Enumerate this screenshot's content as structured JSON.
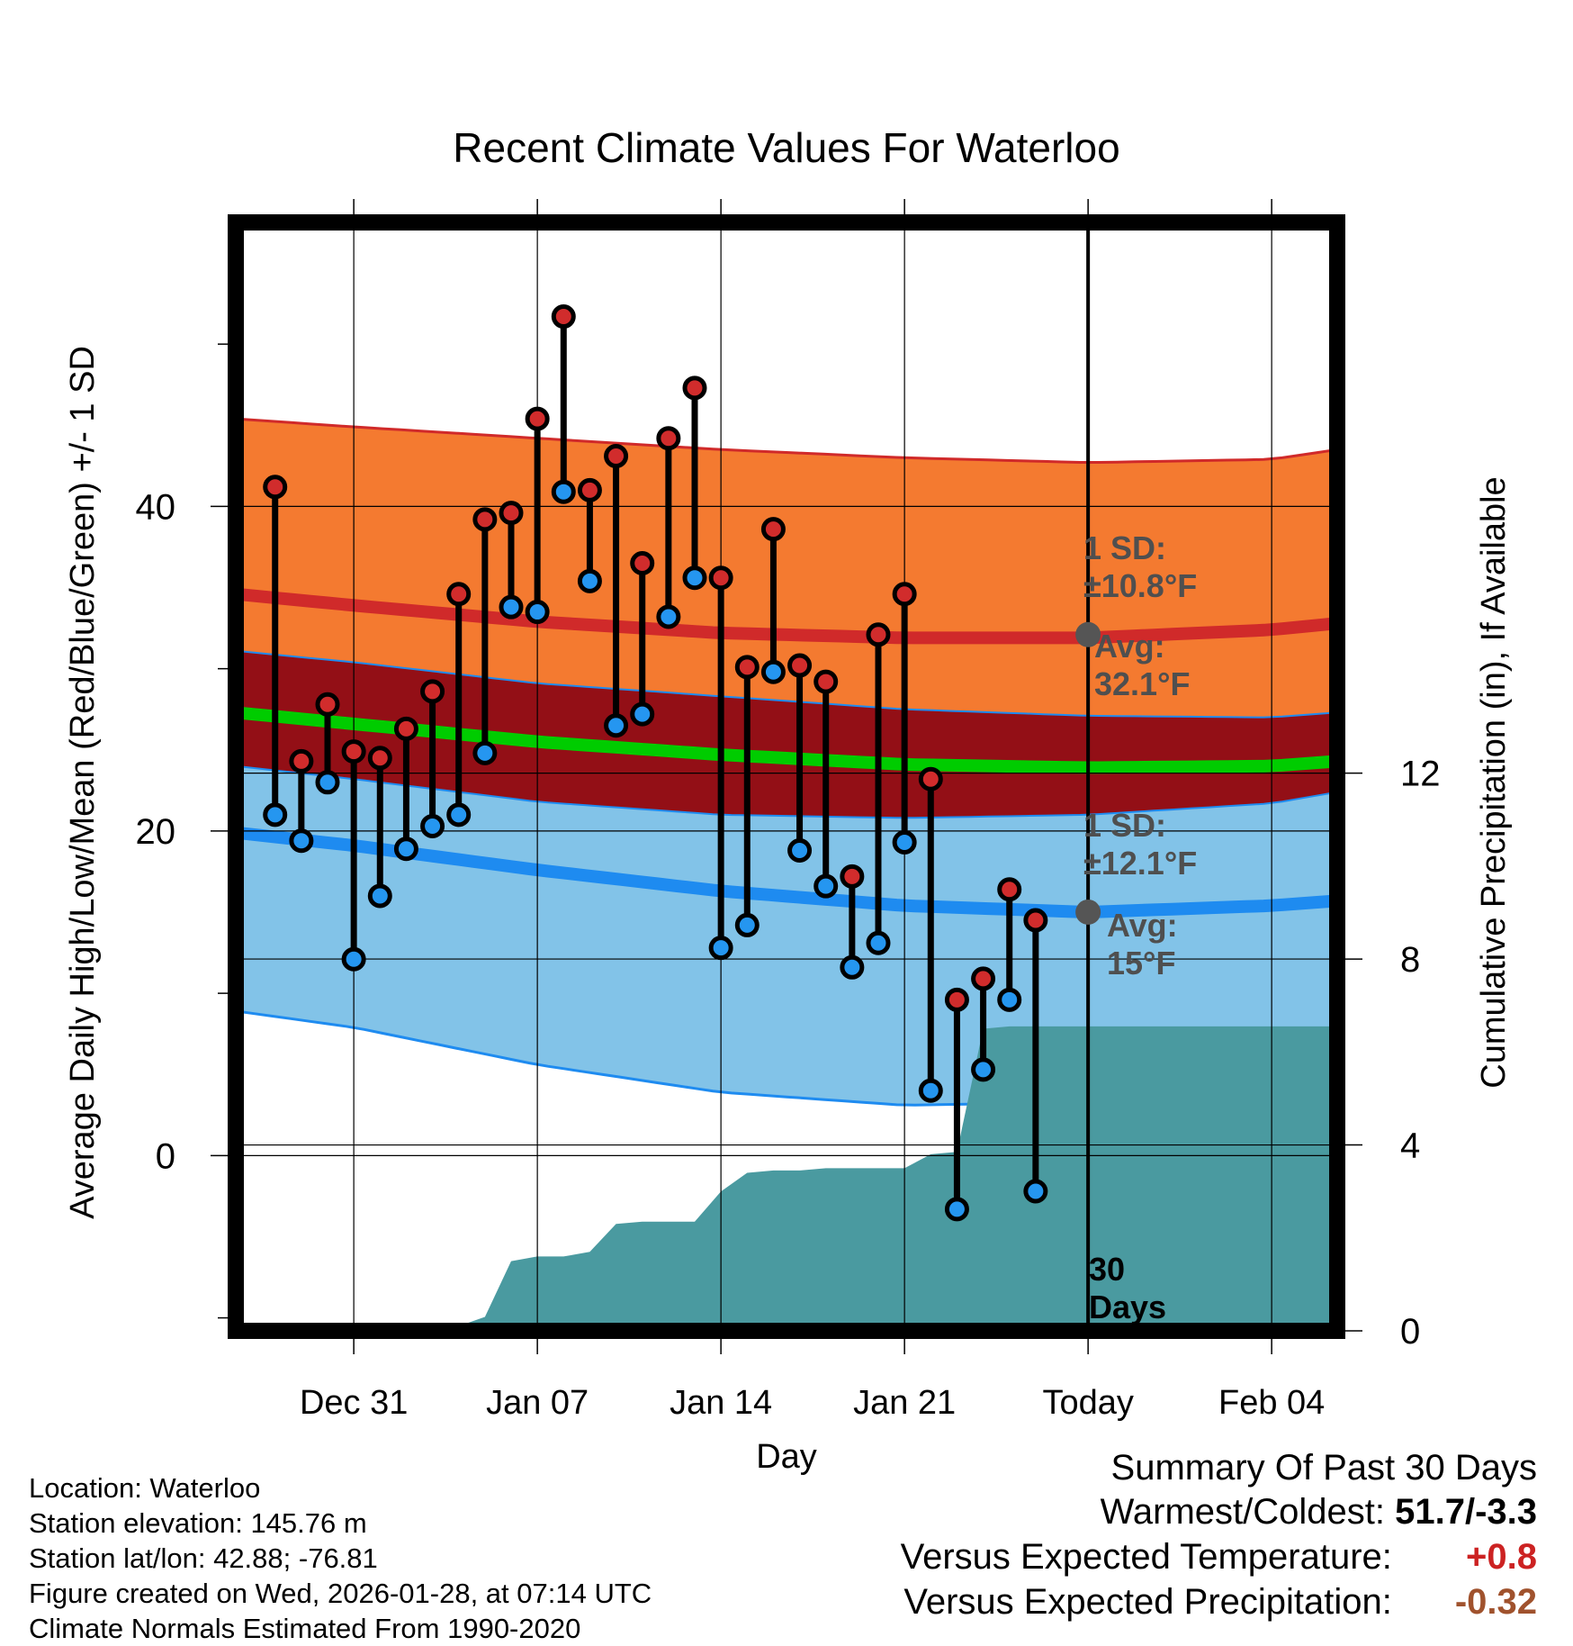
{
  "chart_data": {
    "type": "line",
    "title": "Recent Climate Values For Waterloo",
    "xlabel": "Day",
    "ylabel_left": "Average Daily High/Low/Mean (Red/Blue/Green) +/- 1 SD",
    "ylabel_right": "Cumulative Precipitation (in), If Available",
    "x_range": [
      -4.5,
      37.5
    ],
    "ylim": [
      -10.8,
      57.5
    ],
    "y2lim": [
      0,
      23.85
    ],
    "y_ticks": [
      0,
      20,
      40
    ],
    "y_minor_ticks": [
      -10,
      10,
      30,
      50
    ],
    "y2_ticks": [
      0,
      4,
      8,
      12
    ],
    "x_ticks": [
      {
        "x": 0,
        "label": "Dec 31"
      },
      {
        "x": 7,
        "label": "Jan 07"
      },
      {
        "x": 14,
        "label": "Jan 14"
      },
      {
        "x": 21,
        "label": "Jan 21"
      },
      {
        "x": 28,
        "label": "Today"
      },
      {
        "x": 35,
        "label": "Feb 04"
      }
    ],
    "today_x": 28,
    "normals": {
      "x": [
        -4.5,
        0,
        7,
        14,
        21,
        28,
        35,
        37.5
      ],
      "high_mean": [
        34.6,
        33.9,
        32.9,
        32.2,
        31.9,
        31.9,
        32.4,
        32.8
      ],
      "high_upper": [
        45.4,
        44.9,
        44.2,
        43.5,
        43.0,
        42.7,
        42.9,
        43.5
      ],
      "high_lower": [
        31.1,
        30.4,
        29.1,
        28.3,
        27.5,
        27.1,
        27.0,
        27.3
      ],
      "mean": [
        27.3,
        26.6,
        25.5,
        24.7,
        24.1,
        23.9,
        24.0,
        24.3
      ],
      "low_mean": [
        19.9,
        19.1,
        17.6,
        16.3,
        15.4,
        15.0,
        15.4,
        15.7
      ],
      "low_upper": [
        24.0,
        23.2,
        21.8,
        21.0,
        20.8,
        21.0,
        21.7,
        22.4
      ],
      "low_lower": [
        8.9,
        7.9,
        5.6,
        3.9,
        3.1,
        3.3,
        3.9,
        4.3
      ]
    },
    "series": [
      {
        "name": "High",
        "color": "#d12c2c",
        "x": [
          -3,
          -2,
          -1,
          0,
          1,
          2,
          3,
          4,
          5,
          6,
          7,
          8,
          9,
          10,
          11,
          12,
          13,
          14,
          15,
          16,
          17,
          18,
          19,
          20,
          21,
          22,
          23,
          24,
          25,
          26,
          27
        ],
        "values": [
          41.2,
          24.3,
          27.8,
          24.9,
          24.5,
          26.3,
          28.6,
          34.6,
          39.2,
          39.6,
          45.4,
          51.7,
          41.0,
          43.1,
          36.5,
          44.2,
          47.3,
          35.6,
          30.1,
          38.6,
          30.2,
          29.2,
          17.2,
          32.1,
          34.6,
          23.2,
          9.6,
          10.9,
          16.4,
          14.5,
          null
        ]
      },
      {
        "name": "Low",
        "color": "#2596f0",
        "x": [
          -3,
          -2,
          -1,
          0,
          1,
          2,
          3,
          4,
          5,
          6,
          7,
          8,
          9,
          10,
          11,
          12,
          13,
          14,
          15,
          16,
          17,
          18,
          19,
          20,
          21,
          22,
          23,
          24,
          25,
          26,
          27
        ],
        "values": [
          21.0,
          19.4,
          23.0,
          12.1,
          16.0,
          18.9,
          20.3,
          21.0,
          24.8,
          33.8,
          33.5,
          40.9,
          35.4,
          26.5,
          27.2,
          33.2,
          35.6,
          12.8,
          14.2,
          29.8,
          18.8,
          16.6,
          11.6,
          13.1,
          19.3,
          4.0,
          -3.3,
          5.3,
          9.6,
          -2.2,
          null
        ]
      },
      {
        "name": "Cumulative Precipitation",
        "axis": "right",
        "color": "#4a9aa0",
        "x": [
          -4.5,
          0,
          3,
          4,
          5,
          6,
          7,
          8,
          9,
          10,
          11,
          12,
          13,
          14,
          15,
          16,
          17,
          18,
          19,
          20,
          21,
          22,
          23,
          24,
          25,
          26,
          27,
          28,
          37.5
        ],
        "values": [
          0,
          0,
          0.02,
          0.1,
          0.3,
          1.5,
          1.6,
          1.6,
          1.7,
          2.3,
          2.35,
          2.35,
          2.35,
          3.0,
          3.4,
          3.45,
          3.45,
          3.5,
          3.5,
          3.5,
          3.5,
          3.8,
          3.85,
          6.5,
          6.55,
          6.55,
          6.55,
          6.55,
          6.55
        ]
      }
    ],
    "annotations": {
      "high_sd_label": "1 SD:",
      "high_sd_value": "±10.8°F",
      "high_avg_label": "Avg:",
      "high_avg_value": "32.1°F",
      "high_avg": 32.1,
      "low_sd_label": "1 SD:",
      "low_sd_value": "±12.1°F",
      "low_avg_label": "Avg:",
      "low_avg_value": "15°F",
      "low_avg": 15,
      "days_label_1": "30",
      "days_label_2": "Days"
    },
    "colors": {
      "high_band": "#f47a30",
      "high_edge": "#d02a2a",
      "mid_band": "#930f16",
      "mean_line": "#00cc00",
      "low_band": "#82c3e8",
      "low_edge": "#1e8bf0",
      "precip": "#4a9aa0",
      "annotation": "#4f4f4f",
      "grid": "#000000"
    }
  },
  "footer": {
    "location": "Location: Waterloo",
    "elevation": "Station elevation: 145.76 m",
    "latlon": "Station lat/lon: 42.88; -76.81",
    "created": "Figure created on Wed, 2026-01-28, at 07:14 UTC",
    "normals": "Climate Normals Estimated From 1990-2020"
  },
  "summary": {
    "title": "Summary Of Past 30 Days",
    "warmest_label": "Warmest/Coldest:",
    "warmest_value": "51.7/-3.3",
    "temp_label": "Versus Expected Temperature:",
    "temp_value": "+0.8",
    "temp_color": "#cc2222",
    "precip_label": "Versus Expected Precipitation:",
    "precip_value": "-0.32",
    "precip_color": "#a0522d"
  }
}
